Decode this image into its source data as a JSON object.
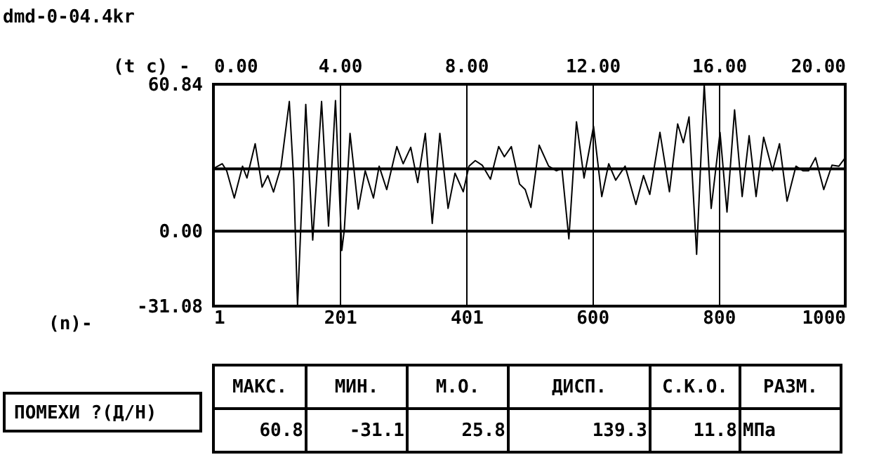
{
  "chart_data": {
    "type": "line",
    "title": "dmd-0-04.4kr",
    "xlabel": "(n)-",
    "x2label": "(t c) -",
    "x": [
      1,
      15,
      22,
      34,
      47,
      54,
      67,
      78,
      87,
      96,
      108,
      121,
      128,
      134,
      139,
      147,
      158,
      172,
      183,
      194,
      204,
      208,
      217,
      230,
      241,
      254,
      263,
      275,
      291,
      301,
      313,
      324,
      336,
      347,
      359,
      372,
      383,
      396,
      405,
      415,
      426,
      439,
      452,
      461,
      472,
      485,
      494,
      503,
      516,
      531,
      543,
      552,
      563,
      575,
      587,
      602,
      615,
      626,
      637,
      652,
      669,
      681,
      691,
      707,
      722,
      735,
      744,
      753,
      765,
      777,
      788,
      802,
      813,
      825,
      837,
      848,
      859,
      871,
      885,
      896,
      908,
      922,
      933,
      942,
      953,
      966,
      979,
      990,
      1000
    ],
    "series": [
      {
        "color": "#000000",
        "values": [
          25.9,
          27.9,
          25.0,
          13.7,
          26.9,
          22.0,
          36.2,
          18.2,
          23.0,
          16.2,
          26.9,
          53.7,
          21.1,
          -31.0,
          0.7,
          52.5,
          -3.7,
          53.7,
          2.1,
          54.1,
          -8.0,
          0.7,
          40.5,
          9.1,
          25.0,
          13.7,
          26.9,
          17.2,
          35.0,
          27.9,
          34.7,
          20.1,
          40.5,
          3.2,
          40.5,
          9.4,
          24.0,
          16.3,
          26.9,
          29.2,
          27.3,
          21.5,
          35.0,
          30.8,
          35.0,
          19.5,
          17.2,
          9.8,
          35.6,
          26.9,
          25.0,
          25.9,
          -3.2,
          45.3,
          22.0,
          43.4,
          14.3,
          27.9,
          21.1,
          26.9,
          11.0,
          23.0,
          15.2,
          40.9,
          16.3,
          44.4,
          36.6,
          47.3,
          -9.6,
          60.8,
          9.4,
          40.9,
          7.9,
          50.2,
          14.3,
          39.5,
          14.3,
          38.9,
          25.0,
          36.2,
          12.4,
          26.9,
          25.0,
          25.0,
          30.4,
          17.2,
          27.3,
          26.9,
          30.4
        ]
      }
    ],
    "xlim": [
      1,
      1000
    ],
    "xticks": [
      1,
      201,
      401,
      600,
      800,
      {
        "value": 1000,
        "label": "1000"
      }
    ],
    "x2lim": [
      0,
      20
    ],
    "x2ticks": [
      {
        "value": 0,
        "label": "0.00"
      },
      {
        "value": 4,
        "label": "4.00"
      },
      {
        "value": 8,
        "label": "8.00"
      },
      {
        "value": 12,
        "label": "12.00"
      },
      {
        "value": 16,
        "label": "16.00"
      },
      {
        "value": 20,
        "label": "20.00"
      }
    ],
    "ylim": [
      -31.08,
      60.84
    ],
    "yticks": [
      {
        "value": 60.84,
        "label": "60.84"
      },
      {
        "value": 0,
        "label": "0.00"
      },
      {
        "value": -31.08,
        "label": "-31.08"
      }
    ],
    "ref_lines": [
      {
        "axis": "y",
        "value": 25.8,
        "color": "#000000"
      },
      {
        "axis": "y",
        "value": 0,
        "color": "#000000"
      }
    ],
    "grid": "x",
    "marker": "none",
    "line_style": "solid",
    "annotations": [
      "ПОМЕХИ ?(Д/Н)",
      "МАКС.",
      "МИН.",
      "М.О.",
      "ДИСП.",
      "С.К.О.",
      "РАЗМ.",
      "60.8",
      "-31.1",
      "25.8",
      "139.3",
      "11.8",
      "МПа"
    ]
  }
}
